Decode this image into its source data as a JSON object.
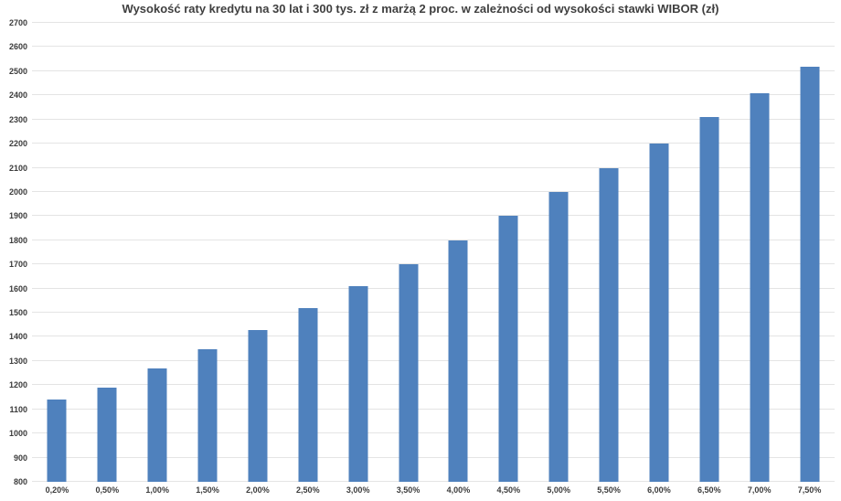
{
  "page": {
    "background_color": "#ffffff",
    "text_color": "#3b3b3b",
    "gridline_color": "#e4e4e4"
  },
  "chart_data": {
    "type": "bar",
    "title": "Wysokość raty kredytu na 30 lat i 300 tys. zł z marżą 2 proc. w zależności od wysokości stawki WIBOR (zł)",
    "categories": [
      "0,20%",
      "0,50%",
      "1,00%",
      "1,50%",
      "2,00%",
      "2,50%",
      "3,00%",
      "3,50%",
      "4,00%",
      "4,50%",
      "5,00%",
      "5,50%",
      "6,00%",
      "6,50%",
      "7,00%",
      "7,50%"
    ],
    "values": [
      1140,
      1190,
      1270,
      1350,
      1430,
      1520,
      1610,
      1700,
      1800,
      1900,
      2000,
      2100,
      2200,
      2310,
      2410,
      2520
    ],
    "xlabel": "",
    "ylabel": "",
    "ylim": [
      800,
      2700
    ],
    "y_tick_step": 100,
    "y_tick_labels": [
      "800",
      "900",
      "1000",
      "1100",
      "1200",
      "1300",
      "1400",
      "1500",
      "1600",
      "1700",
      "1800",
      "1900",
      "2000",
      "2100",
      "2200",
      "2300",
      "2400",
      "2500",
      "2600",
      "2700"
    ],
    "grid": true,
    "legend": false,
    "bar_color": "#4f81bd"
  }
}
